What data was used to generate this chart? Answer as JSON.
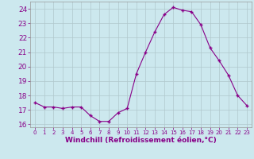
{
  "x": [
    0,
    1,
    2,
    3,
    4,
    5,
    6,
    7,
    8,
    9,
    10,
    11,
    12,
    13,
    14,
    15,
    16,
    17,
    18,
    19,
    20,
    21,
    22,
    23
  ],
  "y": [
    17.5,
    17.2,
    17.2,
    17.1,
    17.2,
    17.2,
    16.6,
    16.2,
    16.2,
    16.8,
    17.1,
    19.5,
    21.0,
    22.4,
    23.6,
    24.1,
    23.9,
    23.8,
    22.9,
    21.3,
    20.4,
    19.4,
    18.0,
    17.3
  ],
  "line_color": "#880088",
  "marker_color": "#880088",
  "bg_color": "#cce8ee",
  "grid_color": "#b0c8cc",
  "xlabel": "Windchill (Refroidissement éolien,°C)",
  "xlabel_color": "#880088",
  "tick_color": "#880088",
  "ylim": [
    15.8,
    24.5
  ],
  "yticks": [
    16,
    17,
    18,
    19,
    20,
    21,
    22,
    23,
    24
  ],
  "xlim": [
    -0.5,
    23.5
  ],
  "xtick_fontsize": 5.0,
  "ytick_fontsize": 6.5,
  "xlabel_fontsize": 6.5
}
